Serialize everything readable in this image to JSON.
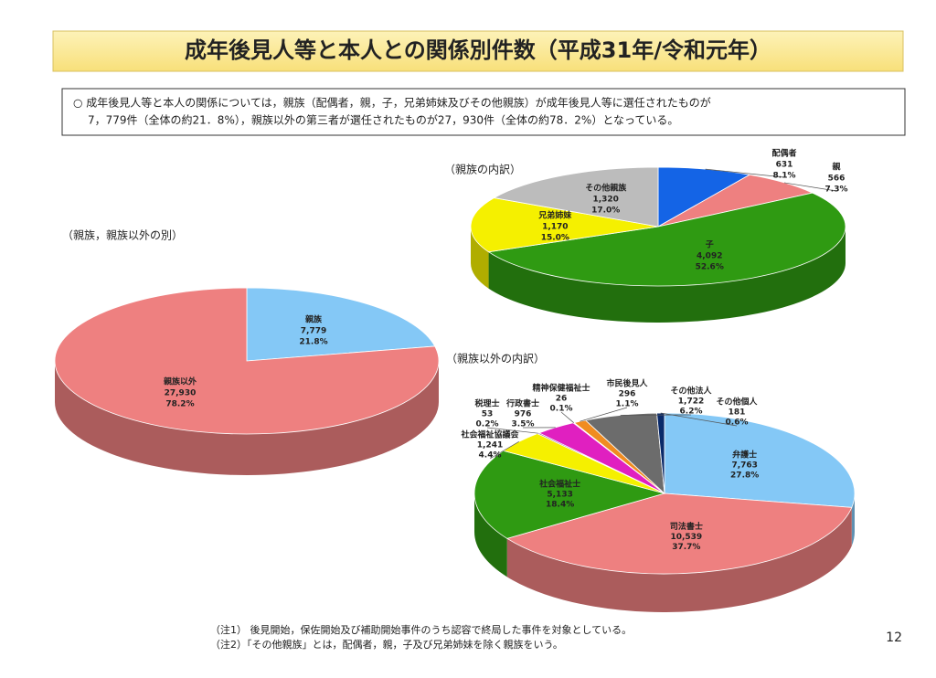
{
  "title": "成年後見人等と本人との関係別件数（平成31年/令和元年）",
  "summary": [
    "○ 成年後見人等と本人の関係については，親族（配偶者，親，子，兄弟姉妹及びその他親族）が成年後見人等に選任されたものが",
    "7，779件（全体の約21．8%），親族以外の第三者が選任されたものが27，930件（全体の約78．2%）となっている。"
  ],
  "chart_data": [
    {
      "type": "pie",
      "title": "（親族，親族以外の別）",
      "categories": [
        "親族",
        "親族以外"
      ],
      "values": [
        7779,
        27930
      ],
      "value_labels": [
        "7,779",
        "27,930"
      ],
      "percent_labels": [
        "21.8%",
        "78.2%"
      ],
      "colors": [
        "#84c8f6",
        "#ee8080"
      ]
    },
    {
      "type": "pie",
      "title": "（親族の内訳）",
      "categories": [
        "配偶者",
        "親",
        "子",
        "兄弟姉妹",
        "その他親族"
      ],
      "values": [
        631,
        566,
        4092,
        1170,
        1320
      ],
      "value_labels": [
        "631",
        "566",
        "4,092",
        "1,170",
        "1,320"
      ],
      "percent_labels": [
        "8.1%",
        "7.3%",
        "52.6%",
        "15.0%",
        "17.0%"
      ],
      "colors": [
        "#1464e6",
        "#ee8080",
        "#2f9a12",
        "#f5f000",
        "#bcbcbc"
      ]
    },
    {
      "type": "pie",
      "title": "（親族以外の内訳）",
      "categories": [
        "弁護士",
        "司法書士",
        "社会福祉士",
        "社会福祉協議会",
        "税理士",
        "行政書士",
        "精神保健福祉士",
        "市民後見人",
        "その他法人",
        "その他個人"
      ],
      "values": [
        7763,
        10539,
        5133,
        1241,
        53,
        976,
        26,
        296,
        1722,
        181
      ],
      "value_labels": [
        "7,763",
        "10,539",
        "5,133",
        "1,241",
        "53",
        "976",
        "26",
        "296",
        "1,722",
        "181"
      ],
      "percent_labels": [
        "27.8%",
        "37.7%",
        "18.4%",
        "4.4%",
        "0.2%",
        "3.5%",
        "0.1%",
        "1.1%",
        "6.2%",
        "0.6%"
      ],
      "colors": [
        "#84c8f6",
        "#ee8080",
        "#2f9a12",
        "#f5f000",
        "#7030a0",
        "#e020c0",
        "#c05000",
        "#f08c20",
        "#6c6c6c",
        "#0a2a6a"
      ]
    }
  ],
  "notes": [
    "（注1） 後見開始，保佐開始及び補助開始事件のうち認容で終局した事件を対象としている。",
    "（注2）「その他親族」とは，配偶者，親，子及び兄弟姉妹を除く親族をいう。"
  ],
  "page_number": 12
}
